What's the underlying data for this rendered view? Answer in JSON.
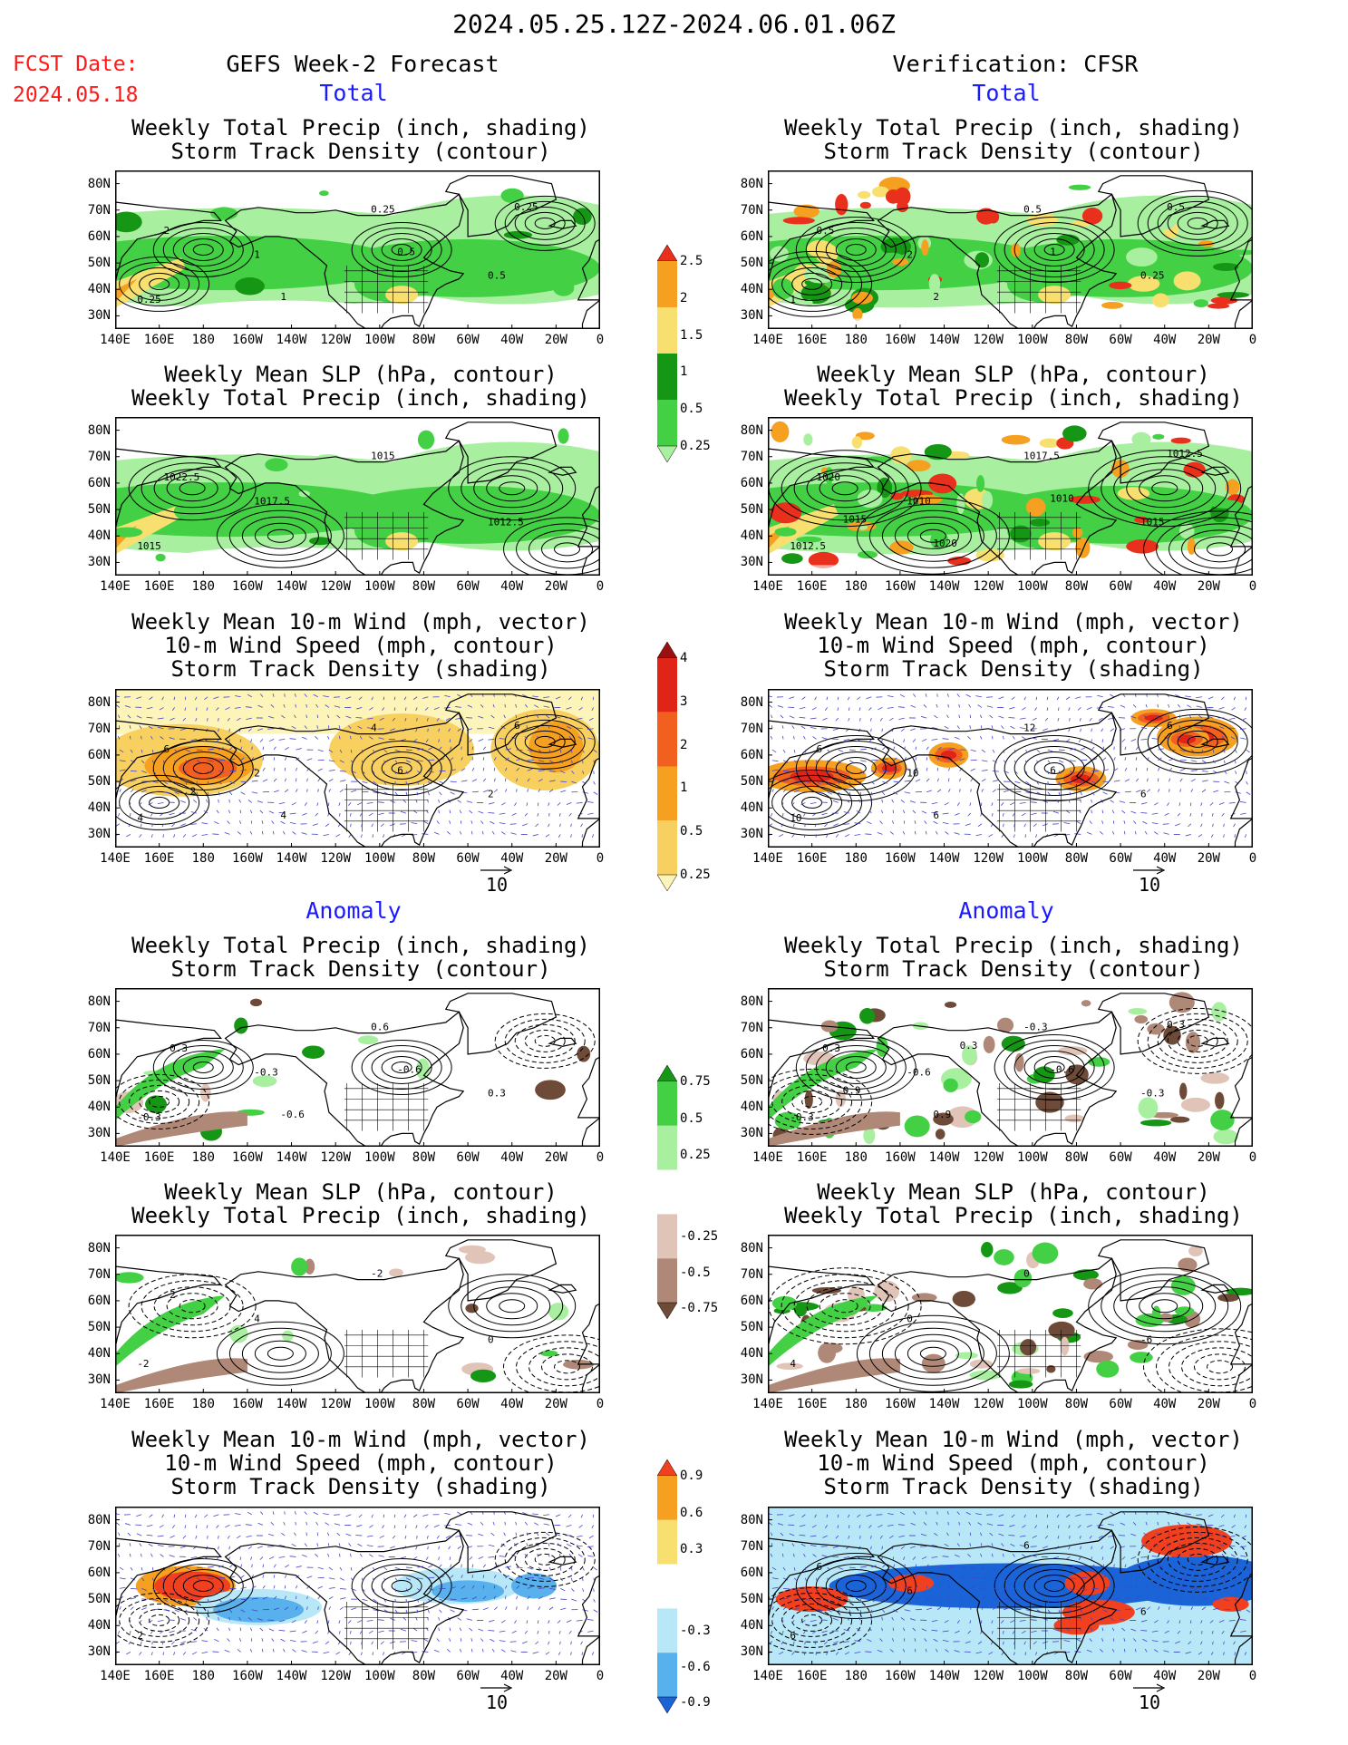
{
  "header": {
    "period": "2024.05.25.12Z-2024.06.01.06Z",
    "fcst_label": "FCST Date:",
    "fcst_date": "2024.05.18",
    "left_title": "GEFS Week-2 Forecast",
    "right_title": "Verification: CFSR"
  },
  "sections": {
    "total": "Total",
    "anomaly": "Anomaly"
  },
  "panel_titles": {
    "precip_storm": [
      "Weekly Total Precip (inch, shading)",
      "Storm Track Density (contour)"
    ],
    "slp_precip": [
      "Weekly Mean SLP (hPa, contour)",
      "Weekly Total Precip (inch, shading)"
    ],
    "wind_storm": [
      "Weekly Mean 10-m Wind (mph, vector)",
      "10-m Wind Speed (mph, contour)",
      "Storm Track Density (shading)"
    ]
  },
  "axes": {
    "lat_ticks": [
      "80N",
      "70N",
      "60N",
      "50N",
      "40N",
      "30N"
    ],
    "lon_ticks": [
      "140E",
      "160E",
      "180",
      "160W",
      "140W",
      "120W",
      "100W",
      "80W",
      "60W",
      "40W",
      "20W",
      "0"
    ]
  },
  "vector_ref": "10",
  "colorbars": {
    "precip_total": {
      "labels": [
        "2.5",
        "2",
        "1.5",
        "1",
        "0.5",
        "0.25"
      ],
      "colors": [
        "#e8301c",
        "#f5a020",
        "#f8e070",
        "#159615",
        "#44d044",
        "#a8f0a0"
      ]
    },
    "storm_total": {
      "labels": [
        "4",
        "3",
        "2",
        "1",
        "0.5",
        "0.25"
      ],
      "colors": [
        "#9a1010",
        "#e02418",
        "#f26020",
        "#f5a020",
        "#f8d060",
        "#fcf4b8"
      ]
    },
    "precip_anom": {
      "labels": [
        "0.75",
        "0.5",
        "0.25",
        "-0.25",
        "-0.5",
        "-0.75"
      ],
      "colors": [
        "#159615",
        "#44d044",
        "#a8f0a0",
        "#ffffff",
        "#e0c4b8",
        "#b08878",
        "#6e4a38"
      ]
    },
    "storm_anom": {
      "labels": [
        "0.9",
        "0.6",
        "0.3",
        "-0.3",
        "-0.6",
        "-0.9"
      ],
      "colors": [
        "#f04020",
        "#f5a020",
        "#f8e070",
        "#ffffff",
        "#b8e8f8",
        "#58b0ec",
        "#1a64d8"
      ]
    }
  },
  "panel_labels": {
    "l1": [
      "0.25",
      "1",
      "0.25",
      "0.5",
      "2",
      "1",
      "0.5",
      "0.25"
    ],
    "r1": [
      "1",
      "2",
      "0.5",
      "0.25",
      "0.5",
      "2",
      "1",
      "0.5"
    ],
    "l2": [
      "1015",
      "1017.5",
      "1015",
      "1012.5",
      "1022.5"
    ],
    "r2": [
      "1012.5",
      "1010",
      "1017.5",
      "1015",
      "1020",
      "1020",
      "1010",
      "1012.5",
      "1015"
    ],
    "l3": [
      "4",
      "2",
      "4",
      "2",
      "6",
      "4",
      "6",
      "6",
      "2"
    ],
    "r3": [
      "10",
      "10",
      "12",
      "6",
      "6",
      "6",
      "6",
      "6"
    ],
    "l4": [
      "-0.3",
      "-0.3",
      "0.6",
      "0.3",
      "-0.3",
      "-0.6",
      "-0.6"
    ],
    "r4": [
      "-0.3",
      "-0.6",
      "-0.3",
      "-0.3",
      "-0.3",
      "0.9",
      "-0.6",
      "0.3",
      "0.9",
      "0.3"
    ],
    "l5": [
      "-2",
      "4",
      "-2",
      "0",
      "-2"
    ],
    "r5": [
      "4",
      "0",
      "0",
      "-6"
    ],
    "l6": [
      "2"
    ],
    "r6": [
      "6",
      "6",
      "6",
      "6",
      "6"
    ]
  }
}
